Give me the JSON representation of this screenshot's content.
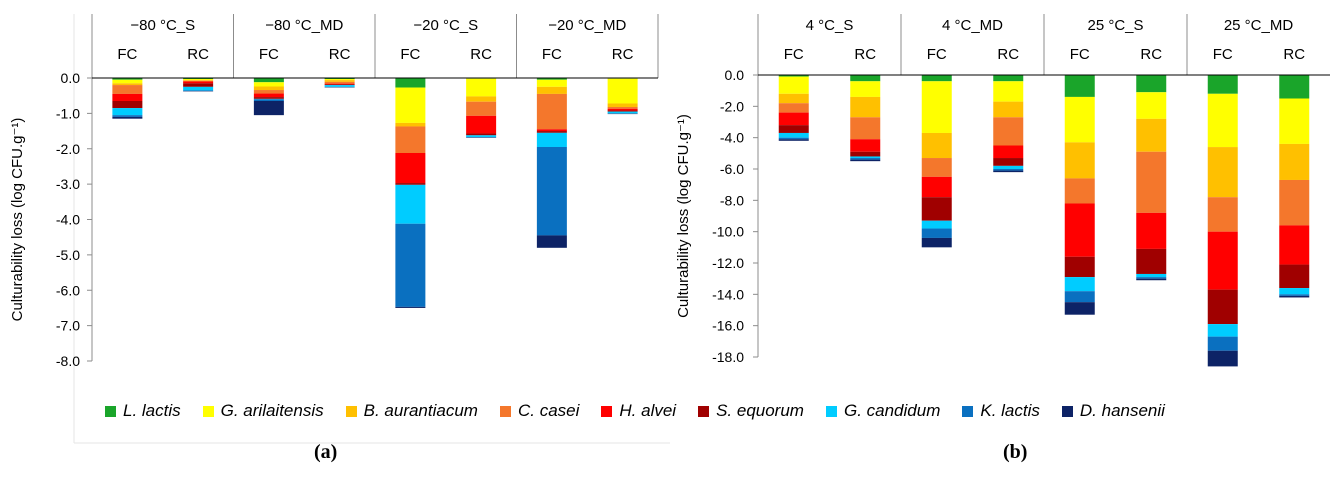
{
  "series_colors": {
    "L. lactis": "#1aa52a",
    "G. arilaitensis": "#ffff00",
    "B. aurantiacum": "#ffc000",
    "C. casei": "#f4772c",
    "H. alvei": "#ff0000",
    "S. equorum": "#a00000",
    "G. candidum": "#00ccff",
    "K. lactis": "#0a70c0",
    "D. hansenii": "#0d2366"
  },
  "legend": [
    {
      "label": "L. lactis",
      "color": "#1aa52a"
    },
    {
      "label": "G.  arilaitensis",
      "color": "#ffff00"
    },
    {
      "label": "B. aurantiacum",
      "color": "#ffc000"
    },
    {
      "label": "C. casei",
      "color": "#f4772c"
    },
    {
      "label": "H. alvei",
      "color": "#ff0000"
    },
    {
      "label": "S. equorum",
      "color": "#a00000"
    },
    {
      "label": "G. candidum",
      "color": "#00ccff"
    },
    {
      "label": "K. lactis",
      "color": "#0a70c0"
    },
    {
      "label": "D. hansenii",
      "color": "#0d2366"
    }
  ],
  "panel_labels": [
    "(a)",
    "(b)"
  ],
  "chart_data": [
    {
      "type": "bar",
      "stacked": true,
      "ylabel": "Culturability loss (log CFU.g⁻¹)",
      "ylim": [
        -8,
        0
      ],
      "yticks": [
        "0.0",
        "-1.0",
        "-2.0",
        "-3.0",
        "-4.0",
        "-5.0",
        "-6.0",
        "-7.0",
        "-8.0"
      ],
      "grid": false,
      "group_labels": [
        "−80 °C_S",
        "−80 °C_MD",
        "−20 °C_S",
        "−20 °C_MD"
      ],
      "categories": [
        "FC",
        "RC",
        "FC",
        "RC",
        "FC",
        "RC",
        "FC",
        "RC"
      ],
      "series": [
        {
          "name": "L. lactis",
          "values": [
            -0.05,
            -0.03,
            -0.12,
            -0.03,
            -0.27,
            -0.02,
            -0.05,
            -0.02
          ]
        },
        {
          "name": "G. arilaitensis",
          "values": [
            -0.1,
            -0.03,
            -0.12,
            -0.03,
            -1.0,
            -0.5,
            -0.2,
            -0.7
          ]
        },
        {
          "name": "B. aurantiacum",
          "values": [
            -0.05,
            -0.02,
            -0.1,
            -0.05,
            -0.1,
            -0.15,
            -0.2,
            -0.1
          ]
        },
        {
          "name": "C. casei",
          "values": [
            -0.25,
            -0.02,
            -0.1,
            -0.05,
            -0.75,
            -0.4,
            -1.0,
            -0.05
          ]
        },
        {
          "name": "H. alvei",
          "values": [
            -0.2,
            -0.05,
            -0.1,
            -0.02,
            -0.85,
            -0.5,
            -0.05,
            -0.05
          ]
        },
        {
          "name": "S. equorum",
          "values": [
            -0.2,
            -0.1,
            -0.05,
            -0.02,
            -0.05,
            -0.05,
            -0.05,
            -0.03
          ]
        },
        {
          "name": "G. candidum",
          "values": [
            -0.2,
            -0.1,
            -0.01,
            -0.05,
            -1.1,
            -0.05,
            -0.4,
            -0.05
          ]
        },
        {
          "name": "K. lactis",
          "values": [
            -0.05,
            -0.02,
            -0.05,
            -0.01,
            -2.35,
            -0.01,
            -2.5,
            -0.01
          ]
        },
        {
          "name": "D. hansenii",
          "values": [
            -0.05,
            -0.01,
            -0.4,
            -0.01,
            -0.03,
            -0.01,
            -0.35,
            -0.01
          ]
        }
      ]
    },
    {
      "type": "bar",
      "stacked": true,
      "ylabel": "Culturability loss (log CFU.g⁻¹)",
      "ylim": [
        -18,
        0
      ],
      "yticks": [
        "0.0",
        "-2.0",
        "-4.0",
        "-6.0",
        "-8.0",
        "-10.0",
        "-12.0",
        "-14.0",
        "-16.0",
        "-18.0"
      ],
      "grid": false,
      "group_labels": [
        "4 °C_S",
        "4 °C_MD",
        "25 °C_S",
        "25 °C_MD"
      ],
      "categories": [
        "FC",
        "RC",
        "FC",
        "RC",
        "FC",
        "RC",
        "FC",
        "RC"
      ],
      "series": [
        {
          "name": "L. lactis",
          "values": [
            -0.1,
            -0.4,
            -0.4,
            -0.4,
            -1.4,
            -1.1,
            -1.2,
            -1.5
          ]
        },
        {
          "name": "G. arilaitensis",
          "values": [
            -1.1,
            -1.0,
            -3.3,
            -1.3,
            -2.9,
            -1.7,
            -3.4,
            -2.9
          ]
        },
        {
          "name": "B. aurantiacum",
          "values": [
            -0.6,
            -1.3,
            -1.6,
            -1.0,
            -2.3,
            -2.1,
            -3.2,
            -2.3
          ]
        },
        {
          "name": "C. casei",
          "values": [
            -0.6,
            -1.4,
            -1.2,
            -1.8,
            -1.6,
            -3.9,
            -2.2,
            -2.9
          ]
        },
        {
          "name": "H. alvei",
          "values": [
            -0.8,
            -0.8,
            -1.3,
            -0.8,
            -3.4,
            -2.3,
            -3.7,
            -2.5
          ]
        },
        {
          "name": "S. equorum",
          "values": [
            -0.5,
            -0.3,
            -1.5,
            -0.5,
            -1.3,
            -1.6,
            -2.2,
            -1.5
          ]
        },
        {
          "name": "G. candidum",
          "values": [
            -0.3,
            -0.1,
            -0.5,
            -0.2,
            -0.9,
            -0.2,
            -0.8,
            -0.4
          ]
        },
        {
          "name": "K. lactis",
          "values": [
            -0.1,
            -0.1,
            -0.6,
            -0.1,
            -0.7,
            -0.1,
            -0.9,
            -0.1
          ]
        },
        {
          "name": "D. hansenii",
          "values": [
            -0.1,
            -0.1,
            -0.6,
            -0.1,
            -0.8,
            -0.1,
            -1.0,
            -0.1
          ]
        }
      ]
    }
  ]
}
